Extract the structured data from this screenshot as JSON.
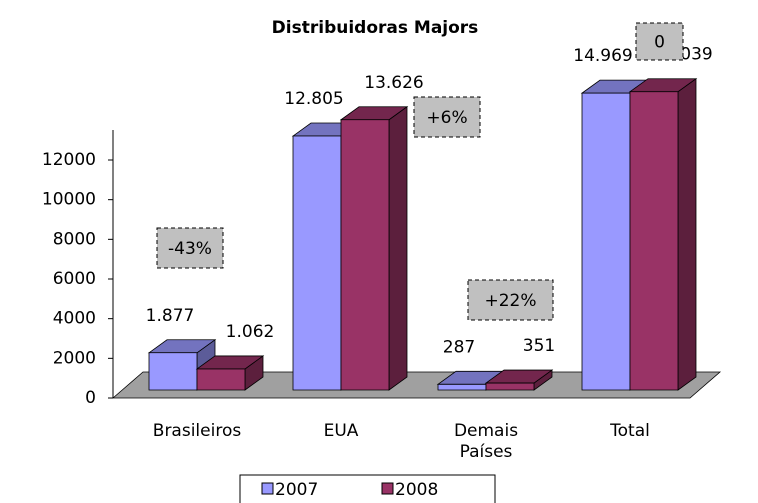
{
  "chart_data": {
    "type": "bar3d",
    "title": "Distribuidoras Majors",
    "categories": [
      "Brasileiros",
      "EUA",
      "Demais Países",
      "Total"
    ],
    "series": [
      {
        "name": "2007",
        "color": "#9999ff",
        "values": [
          1877,
          12805,
          287,
          14969
        ],
        "value_labels": [
          "1.877",
          "12.805",
          "287",
          "14.969"
        ]
      },
      {
        "name": "2008",
        "color": "#993366",
        "values": [
          1062,
          13626,
          351,
          15039
        ],
        "value_labels": [
          "1.062",
          "13.626",
          "351",
          "15.039"
        ]
      }
    ],
    "annotations": [
      "-43%",
      "+6%",
      "+22%",
      "0"
    ],
    "ylim": [
      0,
      14000
    ],
    "yticks": [
      0,
      2000,
      4000,
      6000,
      8000,
      10000,
      12000
    ],
    "legend": "bottom"
  }
}
